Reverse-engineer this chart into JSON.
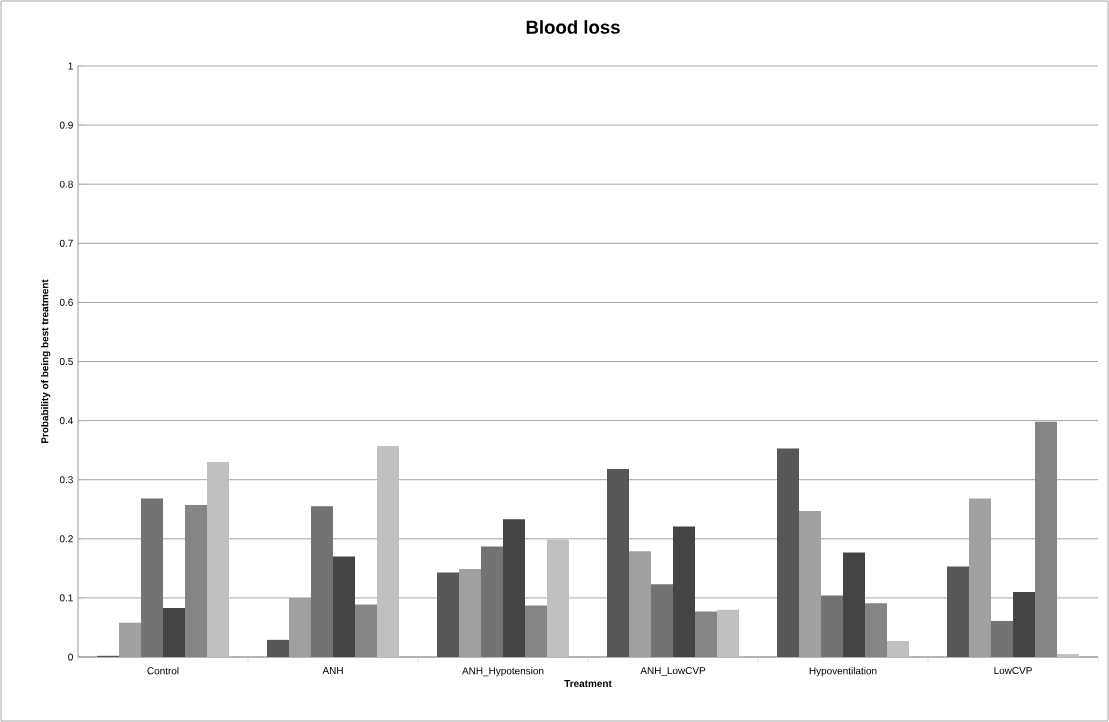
{
  "chart_data": {
    "type": "bar",
    "title": "Blood loss",
    "xlabel": "Treatment",
    "ylabel": "Probability of being best treatment",
    "categories": [
      "Control",
      "ANH",
      "ANH_Hypotension",
      "ANH_LowCVP",
      "Hypoventilation",
      "LowCVP"
    ],
    "series": [
      {
        "color": "#575757",
        "values": [
          0.002,
          0.029,
          0.143,
          0.318,
          0.353,
          0.153
        ]
      },
      {
        "color": "#a0a0a0",
        "values": [
          0.058,
          0.1,
          0.149,
          0.179,
          0.247,
          0.268
        ]
      },
      {
        "color": "#737373",
        "values": [
          0.268,
          0.255,
          0.187,
          0.123,
          0.104,
          0.061
        ]
      },
      {
        "color": "#444444",
        "values": [
          0.083,
          0.17,
          0.233,
          0.221,
          0.177,
          0.11
        ]
      },
      {
        "color": "#858585",
        "values": [
          0.257,
          0.089,
          0.087,
          0.077,
          0.091,
          0.398
        ]
      },
      {
        "color": "#c0c0c0",
        "values": [
          0.33,
          0.357,
          0.199,
          0.08,
          0.027,
          0.005
        ]
      }
    ],
    "ylim": [
      0,
      1
    ],
    "yticks": [
      0,
      0.1,
      0.2,
      0.3,
      0.4,
      0.5,
      0.6,
      0.7,
      0.8,
      0.9,
      1
    ],
    "grid": "y"
  }
}
